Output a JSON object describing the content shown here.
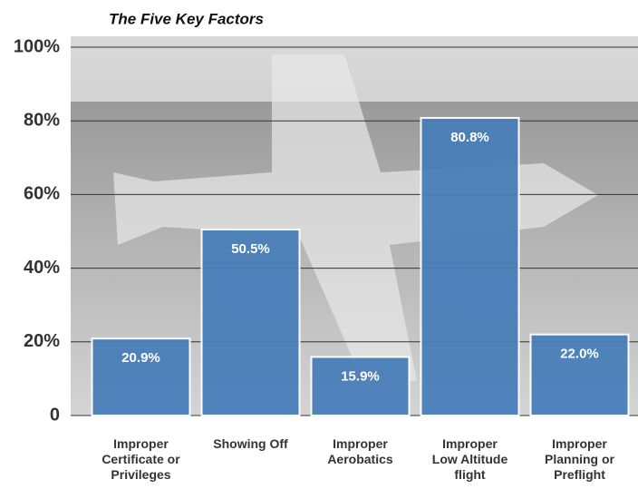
{
  "chart_data": {
    "type": "bar",
    "title": "The Five Key Factors",
    "categories": [
      "Improper\nCertificate or\nPrivileges",
      "Showing Off",
      "Improper\nAerobatics",
      "Improper\nLow Altitude\nflight",
      "Improper\nPlanning or\nPreflight"
    ],
    "values": [
      20.9,
      50.5,
      15.9,
      80.8,
      22.0
    ],
    "value_labels": [
      "20.9%",
      "50.5%",
      "15.9%",
      "80.8%",
      "22.0%"
    ],
    "color": "#4a7fba",
    "ylim": [
      0,
      100
    ],
    "yticks": [
      0,
      {
        "value": 20,
        "label": "20%"
      },
      {
        "value": 40,
        "label": "40%"
      },
      {
        "value": 60,
        "label": "60%"
      },
      {
        "value": 80,
        "label": "80%"
      },
      {
        "value": 100,
        "label": "100%"
      }
    ],
    "grid": true
  }
}
